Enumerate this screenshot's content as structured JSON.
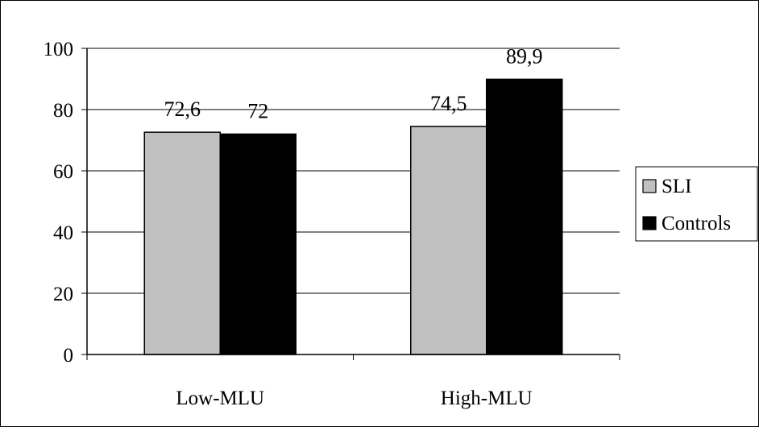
{
  "chart_data": {
    "type": "bar",
    "categories": [
      "Low-MLU",
      "High-MLU"
    ],
    "series": [
      {
        "name": "SLI",
        "values": [
          72.6,
          74.5
        ],
        "labels": [
          "72,6",
          "74,5"
        ],
        "color": "#c0c0c0"
      },
      {
        "name": "Controls",
        "values": [
          72,
          89.9
        ],
        "labels": [
          "72",
          "89,9"
        ],
        "color": "#000000"
      }
    ],
    "title": "",
    "xlabel": "",
    "ylabel": "",
    "ylim": [
      0,
      100
    ],
    "yticks": [
      0,
      20,
      40,
      60,
      80,
      100
    ],
    "grid": true,
    "legend_position": "right"
  }
}
